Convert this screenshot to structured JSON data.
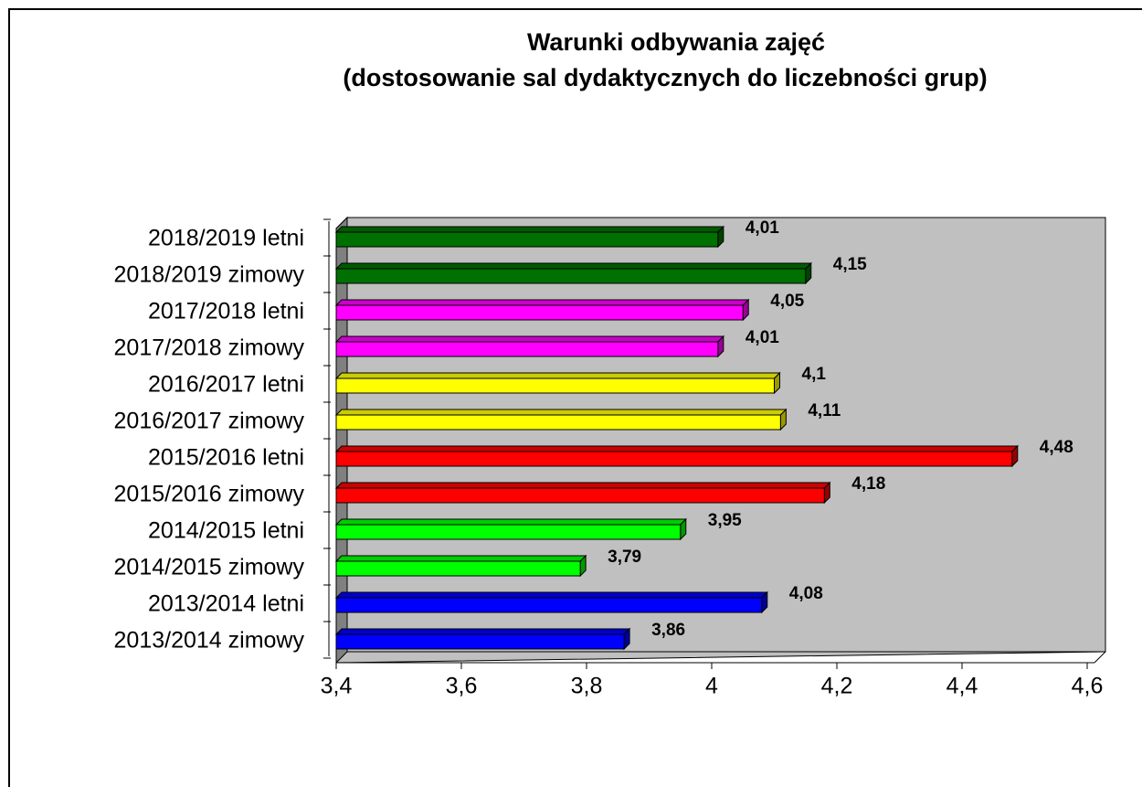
{
  "chart_data": {
    "type": "bar",
    "title": "Warunki odbywania zajęć",
    "subtitle": "(dostosowanie sal dydaktycznych  do liczebności grup)",
    "categories": [
      "2018/2019 letni",
      "2018/2019 zimowy",
      "2017/2018 letni",
      "2017/2018 zimowy",
      "2016/2017 letni",
      "2016/2017 zimowy",
      "2015/2016 letni",
      "2015/2016 zimowy",
      "2014/2015 letni",
      "2014/2015 zimowy",
      "2013/2014 letni",
      "2013/2014 zimowy"
    ],
    "values": [
      4.01,
      4.15,
      4.05,
      4.01,
      4.1,
      4.11,
      4.48,
      4.18,
      3.95,
      3.79,
      4.08,
      3.86
    ],
    "value_labels": [
      "4,01",
      "4,15",
      "4,05",
      "4,01",
      "4,1",
      "4,11",
      "4,48",
      "4,18",
      "3,95",
      "3,79",
      "4,08",
      "3,86"
    ],
    "colors": [
      "#007000",
      "#007000",
      "#ff00ff",
      "#ff00ff",
      "#ffff00",
      "#ffff00",
      "#ff0000",
      "#ff0000",
      "#00ff00",
      "#00ff00",
      "#0000ff",
      "#0000ff"
    ],
    "xlim": [
      3.4,
      4.6
    ],
    "xticks": [
      {
        "value": 3.4,
        "label": "3,4"
      },
      {
        "value": 3.6,
        "label": "3,6"
      },
      {
        "value": 3.8,
        "label": "3,8"
      },
      4,
      {
        "value": 4.2,
        "label": "4,2"
      },
      {
        "value": 4.4,
        "label": "4,4"
      },
      {
        "value": 4.6,
        "label": "4,6"
      }
    ]
  }
}
